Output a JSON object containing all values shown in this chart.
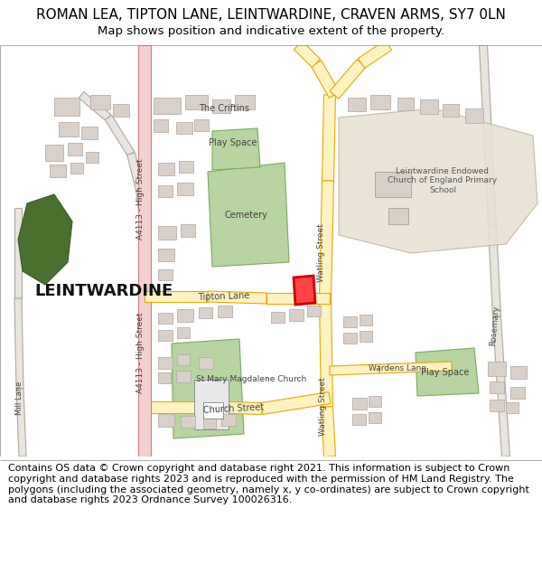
{
  "title": "ROMAN LEA, TIPTON LANE, LEINTWARDINE, CRAVEN ARMS, SY7 0LN",
  "subtitle": "Map shows position and indicative extent of the property.",
  "footer": "Contains OS data © Crown copyright and database right 2021. This information is subject to Crown copyright and database rights 2023 and is reproduced with the permission of HM Land Registry. The polygons (including the associated geometry, namely x, y co-ordinates) are subject to Crown copyright and database rights 2023 Ordnance Survey 100026316.",
  "map_bg": "#ffffff",
  "road_yellow_fill": "#fef3c0",
  "road_yellow_outline": "#e8a800",
  "road_pink_fill": "#f5d0d0",
  "road_pink_outline": "#d08080",
  "building_fill": "#d9d0c9",
  "building_outline": "#b8b0a8",
  "green_light": "#b8d4a0",
  "green_dark": "#4a7830",
  "school_ground": "#e8e0d4",
  "school_outline": "#c0b898",
  "text_dark": "#333333",
  "highlight_fill": "#ff0000",
  "highlight_outline": "#cc0000",
  "road_gray_fill": "#e8e4e0",
  "road_gray_outline": "#b0a898",
  "title_fontsize": 11,
  "subtitle_fontsize": 9.5,
  "footer_fontsize": 8
}
